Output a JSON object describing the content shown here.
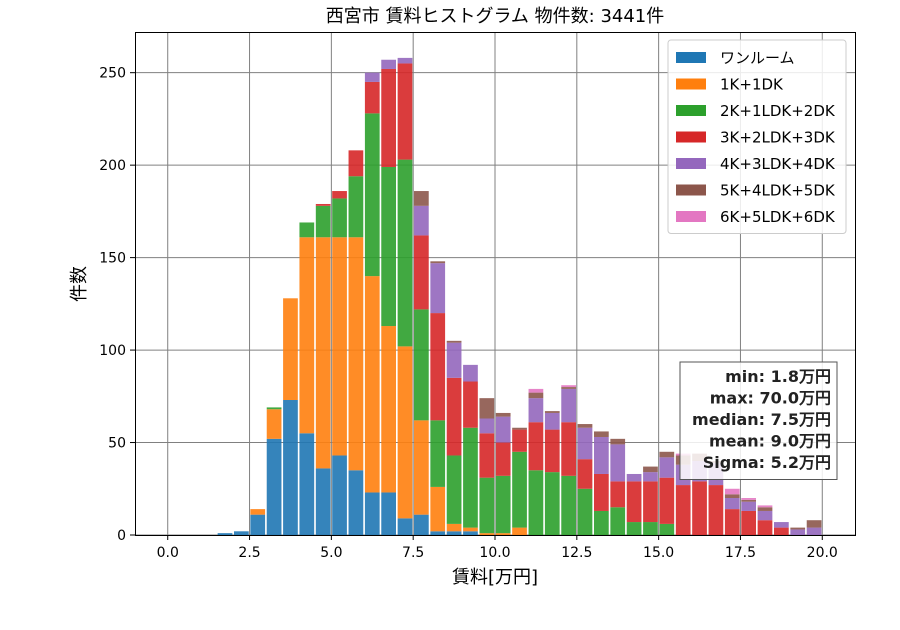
{
  "chart_data": {
    "type": "bar",
    "stacked": true,
    "title": "西宮市 賃料ヒストグラム  物件数: 3441件",
    "xlabel": "賃料[万円]",
    "ylabel": "件数",
    "xlim": [
      -1.0,
      21.0
    ],
    "ylim": [
      0,
      272
    ],
    "xticks": [
      "0.0",
      "2.5",
      "5.0",
      "7.5",
      "10.0",
      "12.5",
      "15.0",
      "17.5",
      "20.0"
    ],
    "xtick_values": [
      0,
      2.5,
      5,
      7.5,
      10,
      12.5,
      15,
      17.5,
      20
    ],
    "yticks": [
      "0",
      "50",
      "100",
      "150",
      "200",
      "250"
    ],
    "ytick_values": [
      0,
      50,
      100,
      150,
      200,
      250
    ],
    "grid": true,
    "legend_position": "top-right",
    "bin_width": 0.5,
    "x": [
      0.25,
      0.75,
      1.25,
      1.75,
      2.25,
      2.75,
      3.25,
      3.75,
      4.25,
      4.75,
      5.25,
      5.75,
      6.25,
      6.75,
      7.25,
      7.75,
      8.25,
      8.75,
      9.25,
      9.75,
      10.25,
      10.75,
      11.25,
      11.75,
      12.25,
      12.75,
      13.25,
      13.75,
      14.25,
      14.75,
      15.25,
      15.75,
      16.25,
      16.75,
      17.25,
      17.75,
      18.25,
      18.75,
      19.25,
      19.75
    ],
    "series": [
      {
        "name": "ワンルーム",
        "color": "#1f77b4",
        "values": [
          0,
          0,
          0,
          1,
          2,
          11,
          52,
          73,
          55,
          36,
          43,
          35,
          23,
          23,
          9,
          11,
          2,
          2,
          2,
          0,
          0,
          0,
          0,
          0,
          0,
          0,
          0,
          0,
          0,
          0,
          0,
          0,
          0,
          0,
          0,
          0,
          0,
          0,
          0,
          0
        ]
      },
      {
        "name": "1K+1DK",
        "color": "#ff7f0e",
        "values": [
          0,
          0,
          0,
          0,
          0,
          3,
          16,
          55,
          106,
          125,
          118,
          126,
          117,
          90,
          93,
          51,
          24,
          4,
          2,
          1,
          1,
          4,
          0,
          0,
          0,
          0,
          0,
          0,
          0,
          0,
          0,
          0,
          0,
          0,
          0,
          0,
          0,
          0,
          0,
          0
        ]
      },
      {
        "name": "2K+1LDK+2DK",
        "color": "#2ca02c",
        "values": [
          0,
          0,
          0,
          0,
          0,
          0,
          1,
          0,
          8,
          17,
          21,
          33,
          88,
          86,
          101,
          60,
          36,
          37,
          54,
          30,
          31,
          41,
          35,
          34,
          32,
          25,
          13,
          15,
          7,
          7,
          6,
          0,
          0,
          0,
          0,
          0,
          0,
          0,
          0,
          0
        ]
      },
      {
        "name": "3K+2LDK+3DK",
        "color": "#d62728",
        "values": [
          0,
          0,
          0,
          0,
          0,
          0,
          0,
          0,
          0,
          1,
          4,
          14,
          17,
          53,
          52,
          40,
          58,
          42,
          25,
          24,
          18,
          12,
          26,
          23,
          29,
          16,
          20,
          14,
          22,
          22,
          25,
          27,
          29,
          27,
          14,
          13,
          8,
          4,
          0,
          0
        ]
      },
      {
        "name": "4K+3LDK+4DK",
        "color": "#9467bd",
        "values": [
          0,
          0,
          0,
          0,
          0,
          0,
          0,
          0,
          0,
          0,
          0,
          0,
          5,
          5,
          3,
          16,
          27,
          19,
          9,
          8,
          14,
          0,
          13,
          9,
          18,
          17,
          20,
          20,
          4,
          5,
          11,
          11,
          11,
          12,
          6,
          5,
          5,
          3,
          3,
          4
        ]
      },
      {
        "name": "5K+4LDK+5DK",
        "color": "#8c564b",
        "values": [
          0,
          0,
          0,
          0,
          0,
          0,
          0,
          0,
          0,
          0,
          0,
          0,
          0,
          0,
          0,
          8,
          1,
          1,
          0,
          11,
          2,
          1,
          3,
          1,
          1,
          2,
          3,
          3,
          0,
          3,
          3,
          5,
          4,
          1,
          2,
          1,
          2,
          0,
          1,
          4
        ]
      },
      {
        "name": "6K+5LDK+6DK",
        "color": "#e377c2",
        "values": [
          0,
          0,
          0,
          0,
          0,
          0,
          0,
          0,
          0,
          0,
          0,
          0,
          0,
          0,
          0,
          0,
          0,
          0,
          0,
          0,
          0,
          0,
          2,
          0,
          1,
          0,
          0,
          0,
          0,
          0,
          0,
          1,
          0,
          0,
          3,
          1,
          1,
          0,
          0,
          0
        ]
      }
    ],
    "stats": [
      "min: 1.8万円",
      "max: 70.0万円",
      "median: 7.5万円",
      "mean: 9.0万円",
      "Sigma: 5.2万円"
    ]
  }
}
